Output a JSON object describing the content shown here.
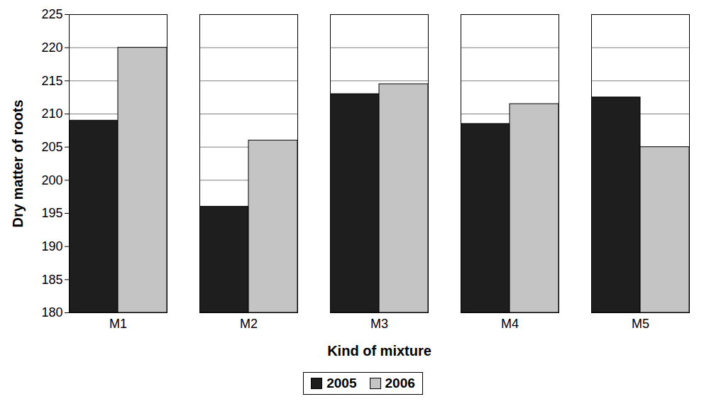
{
  "chart_data": {
    "type": "bar",
    "x_label": "Kind of mixture",
    "y_label": "Dry matter of roots",
    "categories": [
      "M1",
      "M2",
      "M3",
      "M4",
      "M5"
    ],
    "series": [
      {
        "name": "2005",
        "color": "#1e1e1e",
        "values": [
          209,
          196,
          213,
          208.5,
          212.5
        ]
      },
      {
        "name": "2006",
        "color": "#c4c4c4",
        "values": [
          220,
          206,
          214.5,
          211.5,
          205
        ]
      }
    ],
    "ylim": [
      180,
      225
    ],
    "yticks": [
      180,
      185,
      190,
      195,
      200,
      205,
      210,
      215,
      220,
      225
    ],
    "grid": true,
    "legend": "bottom"
  }
}
